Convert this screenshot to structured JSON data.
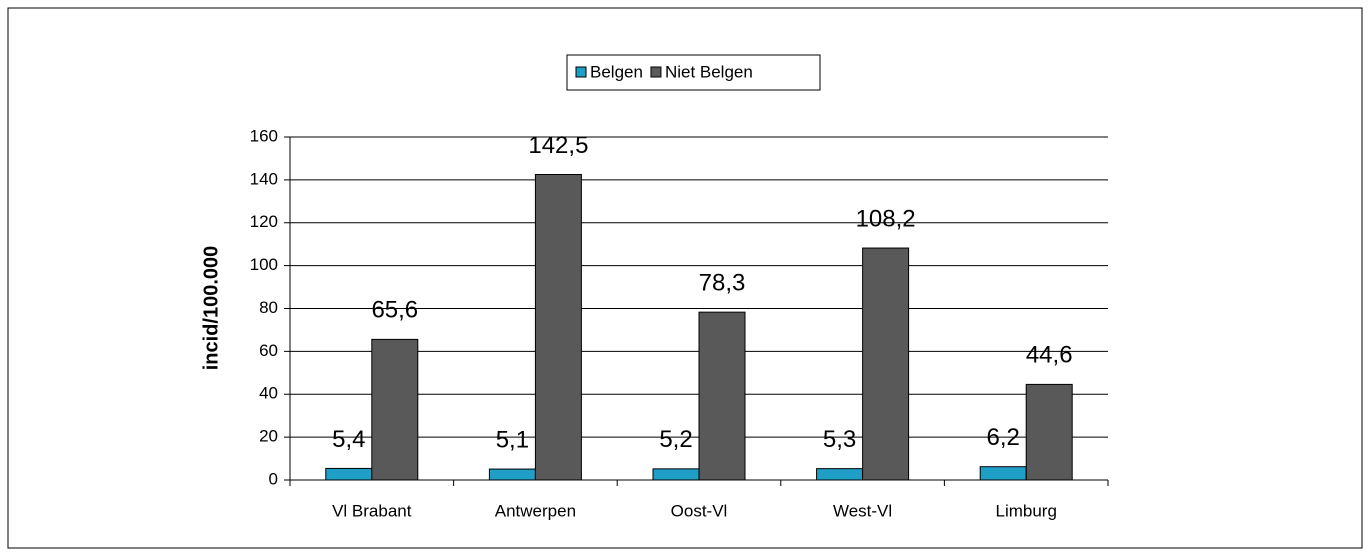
{
  "chart_data": {
    "type": "bar",
    "y_label": "incid/100.000",
    "categories": [
      "Vl Brabant",
      "Antwerpen",
      "Oost-Vl",
      "West-Vl",
      "Limburg"
    ],
    "series": [
      {
        "name": "Belgen",
        "color": "#1f9fc6",
        "values": [
          5.4,
          5.1,
          5.2,
          5.3,
          6.2
        ],
        "value_labels": [
          "5,4",
          "5,1",
          "5,2",
          "5,3",
          "6,2"
        ]
      },
      {
        "name": "Niet Belgen",
        "color": "#595959",
        "values": [
          65.6,
          142.5,
          78.3,
          108.2,
          44.6
        ],
        "value_labels": [
          "65,6",
          "142,5",
          "78,3",
          "108,2",
          "44,6"
        ]
      }
    ],
    "ylim": [
      0,
      160
    ],
    "yticks": [
      0,
      20,
      40,
      60,
      80,
      100,
      120,
      140,
      160
    ],
    "grid": true,
    "legend": "top"
  }
}
